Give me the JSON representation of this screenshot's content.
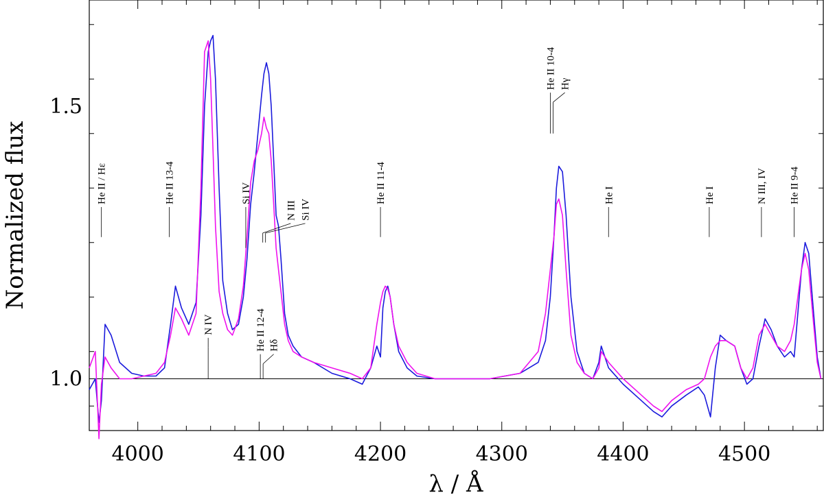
{
  "chart_data": {
    "type": "line",
    "title": "",
    "xlabel": "λ / Å",
    "ylabel": "Normalized flux",
    "xlim": [
      3960,
      4565
    ],
    "ylim": [
      0.905,
      1.695
    ],
    "x_ticks": [
      4000,
      4100,
      4200,
      4300,
      4400,
      4500
    ],
    "x_tick_labels": [
      "4000",
      "4100",
      "4200",
      "4300",
      "4400",
      "4500"
    ],
    "y_ticks": [
      1.0,
      1.5
    ],
    "y_tick_labels": [
      "1.0",
      "1.5"
    ],
    "reference_line": 1.0,
    "grid": false,
    "series": [
      {
        "color": "#1a1adc",
        "x": [
          3960,
          3965,
          3968,
          3970,
          3973,
          3978,
          3985,
          3995,
          4005,
          4015,
          4022,
          4027,
          4031,
          4036,
          4042,
          4048,
          4052,
          4055,
          4058,
          4060,
          4062,
          4064,
          4067,
          4070,
          4074,
          4078,
          4083,
          4087,
          4090,
          4093,
          4096,
          4099,
          4102,
          4104,
          4106,
          4108,
          4110,
          4112,
          4114,
          4116,
          4118,
          4121,
          4124,
          4128,
          4135,
          4145,
          4160,
          4175,
          4185,
          4192,
          4197,
          4200,
          4202,
          4204,
          4206,
          4208,
          4211,
          4215,
          4222,
          4230,
          4245,
          4265,
          4290,
          4315,
          4330,
          4336,
          4340,
          4343,
          4345,
          4347,
          4350,
          4353,
          4357,
          4362,
          4368,
          4375,
          4380,
          4382,
          4388,
          4400,
          4415,
          4425,
          4432,
          4440,
          4452,
          4462,
          4467,
          4472,
          4476,
          4480,
          4485,
          4492,
          4497,
          4502,
          4507,
          4512,
          4517,
          4522,
          4527,
          4533,
          4538,
          4541,
          4544,
          4547,
          4550,
          4553,
          4557,
          4560,
          4563
        ],
        "y": [
          0.98,
          1.0,
          0.92,
          0.96,
          1.1,
          1.08,
          1.03,
          1.01,
          1.005,
          1.005,
          1.02,
          1.1,
          1.17,
          1.13,
          1.1,
          1.14,
          1.3,
          1.5,
          1.6,
          1.62,
          1.63,
          1.55,
          1.35,
          1.18,
          1.12,
          1.09,
          1.1,
          1.15,
          1.22,
          1.32,
          1.38,
          1.45,
          1.52,
          1.56,
          1.58,
          1.56,
          1.5,
          1.4,
          1.3,
          1.28,
          1.22,
          1.12,
          1.08,
          1.06,
          1.04,
          1.03,
          1.01,
          1.0,
          0.99,
          1.02,
          1.06,
          1.04,
          1.13,
          1.16,
          1.17,
          1.15,
          1.1,
          1.05,
          1.02,
          1.005,
          1.0,
          1.0,
          1.0,
          1.01,
          1.03,
          1.07,
          1.15,
          1.26,
          1.35,
          1.39,
          1.38,
          1.3,
          1.15,
          1.05,
          1.01,
          1.0,
          1.03,
          1.06,
          1.02,
          0.99,
          0.96,
          0.94,
          0.93,
          0.95,
          0.97,
          0.985,
          0.97,
          0.93,
          1.02,
          1.08,
          1.07,
          1.06,
          1.02,
          0.99,
          1.0,
          1.06,
          1.11,
          1.09,
          1.06,
          1.04,
          1.05,
          1.04,
          1.12,
          1.2,
          1.25,
          1.23,
          1.12,
          1.04,
          1.0
        ]
      },
      {
        "color": "#ee11ee",
        "x": [
          3960,
          3965,
          3968,
          3970,
          3973,
          3978,
          3985,
          3995,
          4005,
          4015,
          4022,
          4027,
          4031,
          4036,
          4042,
          4048,
          4052,
          4055,
          4058,
          4060,
          4062,
          4064,
          4067,
          4070,
          4074,
          4078,
          4083,
          4087,
          4090,
          4093,
          4096,
          4099,
          4102,
          4104,
          4106,
          4108,
          4110,
          4112,
          4114,
          4116,
          4118,
          4121,
          4124,
          4128,
          4135,
          4145,
          4160,
          4175,
          4185,
          4192,
          4197,
          4200,
          4202,
          4204,
          4206,
          4208,
          4211,
          4215,
          4222,
          4230,
          4245,
          4265,
          4290,
          4315,
          4330,
          4336,
          4340,
          4343,
          4345,
          4347,
          4350,
          4353,
          4357,
          4362,
          4368,
          4375,
          4380,
          4382,
          4388,
          4400,
          4415,
          4425,
          4432,
          4440,
          4452,
          4462,
          4467,
          4472,
          4476,
          4480,
          4485,
          4492,
          4497,
          4502,
          4507,
          4512,
          4517,
          4522,
          4527,
          4533,
          4538,
          4541,
          4544,
          4547,
          4550,
          4553,
          4557,
          4560,
          4563
        ],
        "y": [
          1.02,
          1.05,
          0.89,
          0.99,
          1.04,
          1.02,
          1.0,
          1.0,
          1.005,
          1.01,
          1.03,
          1.08,
          1.13,
          1.11,
          1.08,
          1.12,
          1.35,
          1.6,
          1.62,
          1.55,
          1.42,
          1.28,
          1.16,
          1.12,
          1.09,
          1.08,
          1.11,
          1.17,
          1.26,
          1.36,
          1.4,
          1.42,
          1.45,
          1.48,
          1.46,
          1.45,
          1.4,
          1.32,
          1.24,
          1.2,
          1.16,
          1.1,
          1.07,
          1.05,
          1.04,
          1.03,
          1.02,
          1.01,
          1.0,
          1.02,
          1.1,
          1.14,
          1.16,
          1.17,
          1.165,
          1.15,
          1.1,
          1.06,
          1.03,
          1.01,
          1.0,
          1.0,
          1.0,
          1.01,
          1.05,
          1.12,
          1.2,
          1.26,
          1.32,
          1.33,
          1.3,
          1.2,
          1.08,
          1.03,
          1.01,
          1.0,
          1.02,
          1.05,
          1.03,
          1.0,
          0.97,
          0.95,
          0.94,
          0.96,
          0.98,
          0.99,
          1.0,
          1.04,
          1.06,
          1.07,
          1.07,
          1.06,
          1.02,
          1.0,
          1.02,
          1.08,
          1.1,
          1.08,
          1.06,
          1.05,
          1.07,
          1.1,
          1.15,
          1.2,
          1.23,
          1.2,
          1.1,
          1.03,
          1.0
        ]
      }
    ],
    "annotations": [
      {
        "lines": [
          "He II / Hε"
        ],
        "x": 3970,
        "y_bottom": 1.26,
        "y_top": 1.3,
        "x_text": [
          3970
        ]
      },
      {
        "lines": [
          "He II 13-4"
        ],
        "x": 4026,
        "y_bottom": 1.26,
        "y_top": 1.3,
        "x_text": [
          4026
        ]
      },
      {
        "lines": [
          "N IV"
        ],
        "x": 4058,
        "y_bottom": 1.0,
        "y_top": 1.06,
        "x_text": [
          4058
        ]
      },
      {
        "lines": [
          "Si IV"
        ],
        "x": 4089,
        "y_bottom": 1.24,
        "y_top": 1.3,
        "x_text": [
          4089
        ]
      },
      {
        "lines": [
          "N III",
          "Si IV"
        ],
        "x": 4103,
        "y_bottom": 1.25,
        "y_top": 1.27,
        "x_text": [
          4126,
          4138
        ]
      },
      {
        "lines": [
          "He II 12-4",
          "Hδ"
        ],
        "x": 4101,
        "y_bottom": 1.0,
        "y_top": 1.03,
        "x_text": [
          4101,
          4112
        ]
      },
      {
        "lines": [
          "He II 11-4"
        ],
        "x": 4200,
        "y_bottom": 1.26,
        "y_top": 1.3,
        "x_text": [
          4200
        ]
      },
      {
        "lines": [
          "He II 10-4",
          "Hγ"
        ],
        "x": 4340,
        "y_bottom": 1.45,
        "y_top": 1.51,
        "x_text": [
          4340,
          4352
        ]
      },
      {
        "lines": [
          "He I"
        ],
        "x": 4388,
        "y_bottom": 1.26,
        "y_top": 1.3,
        "x_text": [
          4388
        ]
      },
      {
        "lines": [
          "He I"
        ],
        "x": 4471,
        "y_bottom": 1.26,
        "y_top": 1.3,
        "x_text": [
          4471
        ]
      },
      {
        "lines": [
          "N III, IV"
        ],
        "x": 4514,
        "y_bottom": 1.26,
        "y_top": 1.3,
        "x_text": [
          4514
        ]
      },
      {
        "lines": [
          "He II 9-4"
        ],
        "x": 4541,
        "y_bottom": 1.26,
        "y_top": 1.3,
        "x_text": [
          4541
        ]
      }
    ]
  }
}
